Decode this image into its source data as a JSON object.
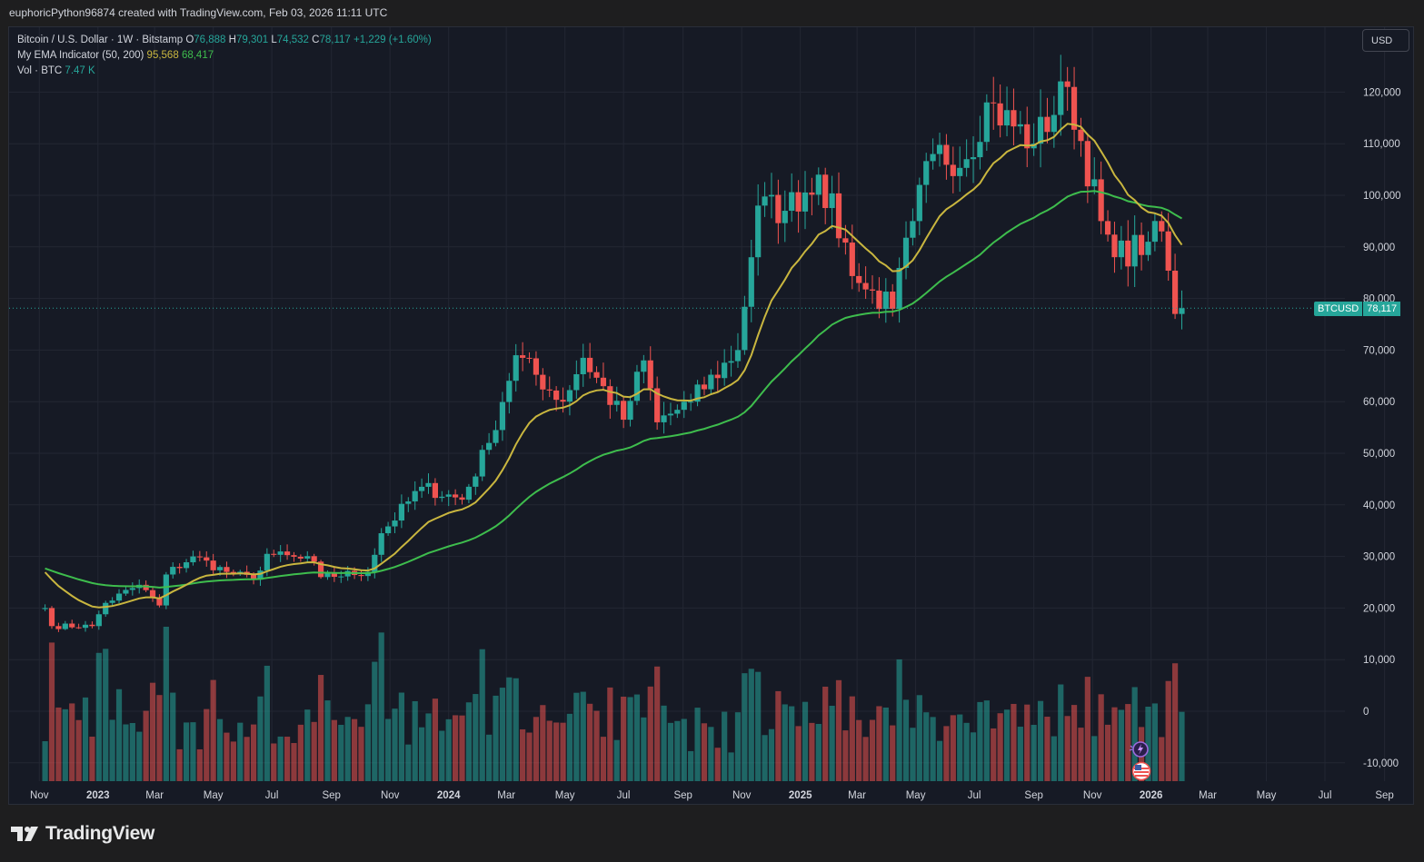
{
  "header": {
    "attribution": "euphoricPython96874 created with TradingView.com, Feb 03, 2026 11:11 UTC"
  },
  "legend": {
    "symbol": "Bitcoin / U.S. Dollar · 1W · Bitstamp",
    "o_label": "O",
    "o_value": "76,888",
    "h_label": "H",
    "h_value": "79,301",
    "l_label": "L",
    "l_value": "74,532",
    "c_label": "C",
    "c_value": "78,117",
    "change": "+1,229 (+1.60%)",
    "ema_label": "My EMA Indicator (50, 200)",
    "ema50": "95,568",
    "ema200": "68,417",
    "vol_label": "Vol · BTC",
    "vol_value": "7.47 K"
  },
  "currency_button": "USD",
  "price_tag": {
    "symbol": "BTCUSD",
    "value": "78,117"
  },
  "logo_text": "TradingView",
  "icons": [
    "tradingview-logo-icon",
    "lightning-event-icon",
    "us-flag-icon"
  ],
  "colors": {
    "up": "#26a69a",
    "down": "#ef5350",
    "ema50": "#c9b63f",
    "ema200": "#3ebd4d",
    "bg": "#161a25"
  },
  "chart_data": {
    "type": "candlestick",
    "interval": "1W",
    "y_axis": {
      "ticks": [
        "120,000",
        "110,000",
        "100,000",
        "90,000",
        "80,000",
        "70,000",
        "60,000",
        "50,000",
        "40,000",
        "30,000",
        "20,000",
        "10,000",
        "0",
        "-10,000"
      ],
      "ylim": [
        -12000,
        130000
      ]
    },
    "x_axis": {
      "ticks": [
        {
          "label": "Nov",
          "bold": false
        },
        {
          "label": "2023",
          "bold": true
        },
        {
          "label": "Mar",
          "bold": false
        },
        {
          "label": "May",
          "bold": false
        },
        {
          "label": "Jul",
          "bold": false
        },
        {
          "label": "Sep",
          "bold": false
        },
        {
          "label": "Nov",
          "bold": false
        },
        {
          "label": "2024",
          "bold": true
        },
        {
          "label": "Mar",
          "bold": false
        },
        {
          "label": "May",
          "bold": false
        },
        {
          "label": "Jul",
          "bold": false
        },
        {
          "label": "Sep",
          "bold": false
        },
        {
          "label": "Nov",
          "bold": false
        },
        {
          "label": "2025",
          "bold": true
        },
        {
          "label": "Mar",
          "bold": false
        },
        {
          "label": "May",
          "bold": false
        },
        {
          "label": "Jul",
          "bold": false
        },
        {
          "label": "Sep",
          "bold": false
        },
        {
          "label": "Nov",
          "bold": false
        },
        {
          "label": "2026",
          "bold": true
        },
        {
          "label": "Mar",
          "bold": false
        },
        {
          "label": "May",
          "bold": false
        },
        {
          "label": "Jul",
          "bold": false
        },
        {
          "label": "Sep",
          "bold": false
        }
      ]
    },
    "series": [
      {
        "name": "BTCUSD",
        "kind": "candles",
        "last_close": 78117,
        "anchors": [
          [
            "2022-11-07",
            20000
          ],
          [
            "2022-11-14",
            16500
          ],
          [
            "2022-12-26",
            16500
          ],
          [
            "2023-01-09",
            21000
          ],
          [
            "2023-02-13",
            24500
          ],
          [
            "2023-03-06",
            20500
          ],
          [
            "2023-03-13",
            26500
          ],
          [
            "2023-04-10",
            30000
          ],
          [
            "2023-05-15",
            27000
          ],
          [
            "2023-06-12",
            25500
          ],
          [
            "2023-06-26",
            30500
          ],
          [
            "2023-08-14",
            29000
          ],
          [
            "2023-08-21",
            26000
          ],
          [
            "2023-10-09",
            27000
          ],
          [
            "2023-10-23",
            34500
          ],
          [
            "2023-12-04",
            43500
          ],
          [
            "2024-01-15",
            41000
          ],
          [
            "2024-02-12",
            52000
          ],
          [
            "2024-03-11",
            69000
          ],
          [
            "2024-04-29",
            60000
          ],
          [
            "2024-05-20",
            68500
          ],
          [
            "2024-07-01",
            56500
          ],
          [
            "2024-07-22",
            68000
          ],
          [
            "2024-08-05",
            56000
          ],
          [
            "2024-09-09",
            60000
          ],
          [
            "2024-10-28",
            70000
          ],
          [
            "2024-11-18",
            98000
          ],
          [
            "2024-12-16",
            97000
          ],
          [
            "2025-01-20",
            104000
          ],
          [
            "2025-03-03",
            83000
          ],
          [
            "2025-04-07",
            78000
          ],
          [
            "2025-04-28",
            95000
          ],
          [
            "2025-05-19",
            108000
          ],
          [
            "2025-06-23",
            107000
          ],
          [
            "2025-07-14",
            118000
          ],
          [
            "2025-09-01",
            110000
          ],
          [
            "2025-10-06",
            121000
          ],
          [
            "2025-11-10",
            95000
          ],
          [
            "2025-11-24",
            88000
          ],
          [
            "2025-12-29",
            91000
          ],
          [
            "2026-01-12",
            93000
          ],
          [
            "2026-01-26",
            77000
          ],
          [
            "2026-02-02",
            78117
          ]
        ]
      },
      {
        "name": "EMA 50",
        "values": "95,568"
      },
      {
        "name": "EMA 200",
        "values": "68,417"
      },
      {
        "name": "Vol",
        "values": "7.47 K"
      }
    ]
  }
}
